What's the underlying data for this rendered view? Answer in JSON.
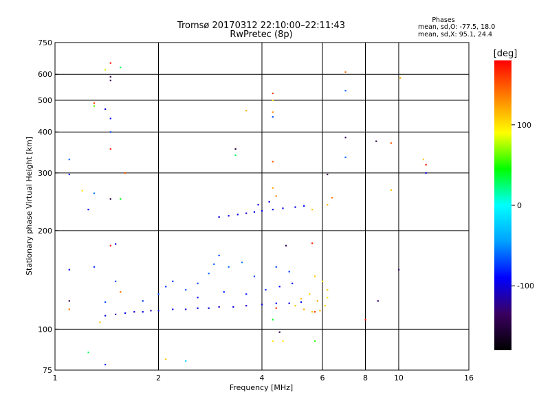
{
  "chart_data": {
    "type": "scatter",
    "title_line1": "Tromsø 20170312 22:10:00–22:11:43",
    "title_line2": "RwPretec (8p)",
    "stats": {
      "heading": "Phases",
      "line1": "mean, sd,O: -77.5, 18.0",
      "line2": "mean, sd,X:  95.1, 24.4"
    },
    "xlabel": "Frequency [MHz]",
    "ylabel": "Stationary phase Virtual Height [km]",
    "x_scale": "log2",
    "y_scale": "log",
    "xlim": [
      1,
      16
    ],
    "ylim": [
      75,
      750
    ],
    "x_ticks": [
      {
        "v": 1,
        "label": "1"
      },
      {
        "v": 2,
        "label": "2"
      },
      {
        "v": 4,
        "label": "4"
      },
      {
        "v": 6,
        "label": "6"
      },
      {
        "v": 8,
        "label": "8"
      },
      {
        "v": 10,
        "label": "10"
      },
      {
        "v": 16,
        "label": "16"
      }
    ],
    "x_grid": [
      2,
      4,
      6,
      8,
      10
    ],
    "y_ticks": [
      {
        "v": 75,
        "label": "75"
      },
      {
        "v": 100,
        "label": "100"
      },
      {
        "v": 200,
        "label": "200"
      },
      {
        "v": 300,
        "label": "300"
      },
      {
        "v": 400,
        "label": "400"
      },
      {
        "v": 500,
        "label": "500"
      },
      {
        "v": 600,
        "label": "600"
      },
      {
        "v": 750,
        "label": "750"
      }
    ],
    "y_grid": [
      100,
      200,
      300,
      400,
      500,
      600
    ],
    "grid": true,
    "colorbar": {
      "label": "[deg]",
      "range": [
        -180,
        180
      ],
      "ticks": [
        {
          "v": 100,
          "label": "100"
        },
        {
          "v": 0,
          "label": "0"
        },
        {
          "v": -100,
          "label": "-100"
        }
      ],
      "colors": [
        "#000000",
        "#3a0060",
        "#0000ff",
        "#00a0ff",
        "#00ffff",
        "#00ff00",
        "#ffff00",
        "#ff8000",
        "#ff0000"
      ]
    },
    "series": [
      {
        "values": [
          {
            "x": 1.4,
            "y": 110,
            "phase": -100
          },
          {
            "x": 1.5,
            "y": 111,
            "phase": -110
          },
          {
            "x": 1.6,
            "y": 112,
            "phase": -95
          },
          {
            "x": 1.7,
            "y": 113,
            "phase": -100
          },
          {
            "x": 1.8,
            "y": 113,
            "phase": -90
          },
          {
            "x": 1.9,
            "y": 114,
            "phase": -105
          },
          {
            "x": 2.0,
            "y": 114,
            "phase": -100
          },
          {
            "x": 2.2,
            "y": 115,
            "phase": -95
          },
          {
            "x": 2.4,
            "y": 115,
            "phase": -100
          },
          {
            "x": 2.6,
            "y": 116,
            "phase": -90
          },
          {
            "x": 2.8,
            "y": 116,
            "phase": -100
          },
          {
            "x": 3.0,
            "y": 117,
            "phase": -110
          },
          {
            "x": 3.3,
            "y": 117,
            "phase": -100
          },
          {
            "x": 3.6,
            "y": 118,
            "phase": -105
          },
          {
            "x": 4.0,
            "y": 119,
            "phase": -100
          },
          {
            "x": 4.4,
            "y": 120,
            "phase": -95
          },
          {
            "x": 4.8,
            "y": 120,
            "phase": -100
          },
          {
            "x": 5.2,
            "y": 121,
            "phase": -90
          },
          {
            "x": 1.8,
            "y": 122,
            "phase": -75
          },
          {
            "x": 2.0,
            "y": 128,
            "phase": -70
          },
          {
            "x": 2.1,
            "y": 135,
            "phase": -80
          },
          {
            "x": 2.2,
            "y": 140,
            "phase": -75
          },
          {
            "x": 2.4,
            "y": 132,
            "phase": -65
          },
          {
            "x": 2.6,
            "y": 138,
            "phase": -70
          },
          {
            "x": 2.8,
            "y": 148,
            "phase": -60
          },
          {
            "x": 2.9,
            "y": 158,
            "phase": -65
          },
          {
            "x": 3.0,
            "y": 168,
            "phase": -70
          },
          {
            "x": 3.2,
            "y": 155,
            "phase": -60
          },
          {
            "x": 3.5,
            "y": 160,
            "phase": -55
          },
          {
            "x": 3.8,
            "y": 145,
            "phase": -70
          },
          {
            "x": 2.6,
            "y": 125,
            "phase": -85
          },
          {
            "x": 3.1,
            "y": 130,
            "phase": -80
          },
          {
            "x": 3.6,
            "y": 128,
            "phase": -85
          },
          {
            "x": 4.1,
            "y": 132,
            "phase": -80
          },
          {
            "x": 4.5,
            "y": 135,
            "phase": -90
          },
          {
            "x": 4.9,
            "y": 138,
            "phase": -85
          },
          {
            "x": 4.4,
            "y": 155,
            "phase": -70
          },
          {
            "x": 4.8,
            "y": 150,
            "phase": -75
          },
          {
            "x": 3.0,
            "y": 220,
            "phase": -100
          },
          {
            "x": 3.2,
            "y": 222,
            "phase": -95
          },
          {
            "x": 3.4,
            "y": 224,
            "phase": -100
          },
          {
            "x": 3.6,
            "y": 226,
            "phase": -105
          },
          {
            "x": 3.8,
            "y": 228,
            "phase": -100
          },
          {
            "x": 4.0,
            "y": 230,
            "phase": -95
          },
          {
            "x": 4.3,
            "y": 232,
            "phase": -100
          },
          {
            "x": 4.6,
            "y": 234,
            "phase": -95
          },
          {
            "x": 5.0,
            "y": 236,
            "phase": -100
          },
          {
            "x": 5.3,
            "y": 238,
            "phase": -90
          },
          {
            "x": 4.2,
            "y": 245,
            "phase": -95
          },
          {
            "x": 3.9,
            "y": 240,
            "phase": -100
          },
          {
            "x": 5.0,
            "y": 118,
            "phase": 110
          },
          {
            "x": 5.3,
            "y": 115,
            "phase": 120
          },
          {
            "x": 5.6,
            "y": 113,
            "phase": 110
          },
          {
            "x": 5.9,
            "y": 114,
            "phase": 115
          },
          {
            "x": 6.1,
            "y": 118,
            "phase": 105
          },
          {
            "x": 6.2,
            "y": 125,
            "phase": 100
          },
          {
            "x": 6.2,
            "y": 132,
            "phase": 110
          },
          {
            "x": 6.0,
            "y": 140,
            "phase": 100
          },
          {
            "x": 5.7,
            "y": 145,
            "phase": 110
          },
          {
            "x": 5.5,
            "y": 128,
            "phase": 105
          },
          {
            "x": 5.2,
            "y": 124,
            "phase": 115
          },
          {
            "x": 5.8,
            "y": 122,
            "phase": 120
          },
          {
            "x": 5.6,
            "y": 232,
            "phase": 110
          },
          {
            "x": 6.2,
            "y": 240,
            "phase": 115
          },
          {
            "x": 4.3,
            "y": 107,
            "phase": 40
          },
          {
            "x": 4.4,
            "y": 116,
            "phase": 160
          },
          {
            "x": 5.7,
            "y": 113,
            "phase": 160
          },
          {
            "x": 8.0,
            "y": 107,
            "phase": 175
          },
          {
            "x": 1.3,
            "y": 490,
            "phase": 160
          },
          {
            "x": 1.3,
            "y": 480,
            "phase": 60
          },
          {
            "x": 1.45,
            "y": 650,
            "phase": 170
          },
          {
            "x": 1.45,
            "y": 575,
            "phase": -140
          },
          {
            "x": 1.45,
            "y": 590,
            "phase": -140
          },
          {
            "x": 1.55,
            "y": 630,
            "phase": 30
          },
          {
            "x": 1.4,
            "y": 620,
            "phase": 80
          },
          {
            "x": 1.4,
            "y": 470,
            "phase": -100
          },
          {
            "x": 1.45,
            "y": 440,
            "phase": -90
          },
          {
            "x": 1.45,
            "y": 400,
            "phase": -70
          },
          {
            "x": 1.45,
            "y": 355,
            "phase": 170
          },
          {
            "x": 1.6,
            "y": 300,
            "phase": 150
          },
          {
            "x": 1.1,
            "y": 330,
            "phase": -60
          },
          {
            "x": 1.1,
            "y": 297,
            "phase": -80
          },
          {
            "x": 1.2,
            "y": 265,
            "phase": 100
          },
          {
            "x": 1.3,
            "y": 260,
            "phase": -60
          },
          {
            "x": 1.45,
            "y": 250,
            "phase": -150
          },
          {
            "x": 1.55,
            "y": 250,
            "phase": 40
          },
          {
            "x": 1.25,
            "y": 232,
            "phase": -90
          },
          {
            "x": 1.45,
            "y": 180,
            "phase": 170
          },
          {
            "x": 1.5,
            "y": 182,
            "phase": -100
          },
          {
            "x": 1.1,
            "y": 152,
            "phase": -90
          },
          {
            "x": 1.3,
            "y": 155,
            "phase": -80
          },
          {
            "x": 1.5,
            "y": 140,
            "phase": -70
          },
          {
            "x": 1.55,
            "y": 130,
            "phase": 140
          },
          {
            "x": 1.1,
            "y": 122,
            "phase": -140
          },
          {
            "x": 1.1,
            "y": 115,
            "phase": 140
          },
          {
            "x": 1.4,
            "y": 121,
            "phase": -70
          },
          {
            "x": 1.35,
            "y": 105,
            "phase": 110
          },
          {
            "x": 1.25,
            "y": 85,
            "phase": 30
          },
          {
            "x": 1.4,
            "y": 78,
            "phase": -80
          },
          {
            "x": 2.1,
            "y": 81,
            "phase": 110
          },
          {
            "x": 2.4,
            "y": 80,
            "phase": -20
          },
          {
            "x": 3.35,
            "y": 355,
            "phase": -150
          },
          {
            "x": 3.35,
            "y": 340,
            "phase": 30
          },
          {
            "x": 3.6,
            "y": 465,
            "phase": 120
          },
          {
            "x": 4.3,
            "y": 525,
            "phase": 160
          },
          {
            "x": 4.3,
            "y": 500,
            "phase": 100
          },
          {
            "x": 4.3,
            "y": 460,
            "phase": 130
          },
          {
            "x": 4.3,
            "y": 445,
            "phase": -70
          },
          {
            "x": 4.3,
            "y": 325,
            "phase": 150
          },
          {
            "x": 4.3,
            "y": 270,
            "phase": 120
          },
          {
            "x": 4.4,
            "y": 255,
            "phase": 130
          },
          {
            "x": 6.2,
            "y": 297,
            "phase": -140
          },
          {
            "x": 7.0,
            "y": 610,
            "phase": 140
          },
          {
            "x": 7.0,
            "y": 535,
            "phase": -60
          },
          {
            "x": 7.0,
            "y": 385,
            "phase": -140
          },
          {
            "x": 7.0,
            "y": 335,
            "phase": -60
          },
          {
            "x": 8.6,
            "y": 375,
            "phase": -140
          },
          {
            "x": 9.5,
            "y": 370,
            "phase": 150
          },
          {
            "x": 9.5,
            "y": 266,
            "phase": 110
          },
          {
            "x": 10.1,
            "y": 585,
            "phase": 120
          },
          {
            "x": 11.8,
            "y": 330,
            "phase": 110
          },
          {
            "x": 12.0,
            "y": 318,
            "phase": 170
          },
          {
            "x": 12.0,
            "y": 300,
            "phase": -100
          },
          {
            "x": 10.0,
            "y": 152,
            "phase": -130
          },
          {
            "x": 8.7,
            "y": 122,
            "phase": -130
          },
          {
            "x": 4.5,
            "y": 98,
            "phase": -140
          },
          {
            "x": 4.3,
            "y": 92,
            "phase": 100
          },
          {
            "x": 4.6,
            "y": 92,
            "phase": 100
          },
          {
            "x": 5.7,
            "y": 92,
            "phase": 50
          },
          {
            "x": 6.4,
            "y": 252,
            "phase": 140
          },
          {
            "x": 5.6,
            "y": 183,
            "phase": 170
          },
          {
            "x": 4.7,
            "y": 180,
            "phase": -140
          }
        ]
      }
    ]
  }
}
